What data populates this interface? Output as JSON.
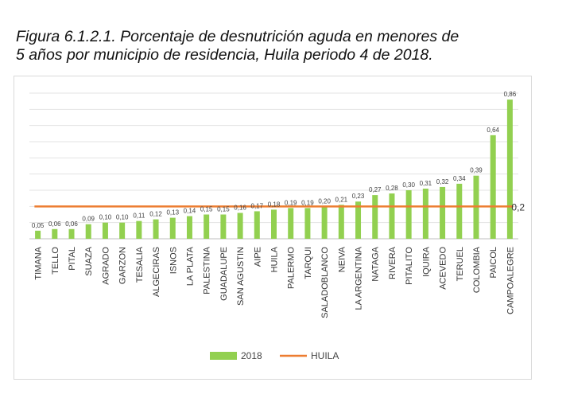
{
  "caption": {
    "line1": "Figura 6.1.2.1. Porcentaje de desnutrición aguda en menores de",
    "line2": "5 años por municipio de residencia, Huila periodo 4 de 2018."
  },
  "chart_data": {
    "type": "bar",
    "categories": [
      "TIMANA",
      "TELLO",
      "PITAL",
      "SUAZA",
      "AGRADO",
      "GARZON",
      "TESALIA",
      "ALGECIRAS",
      "ISNOS",
      "LA PLATA",
      "PALESTINA",
      "GUADALUPE",
      "SAN AGUSTIN",
      "AIPE",
      "HUILA",
      "PALERMO",
      "TARQUI",
      "SALADOBLANCO",
      "NEIVA",
      "LA ARGENTINA",
      "NATAGA",
      "RIVERA",
      "PITALITO",
      "IQUIRA",
      "ACEVEDO",
      "TERUEL",
      "COLOMBIA",
      "PAICOL",
      "CAMPOALEGRE"
    ],
    "series": [
      {
        "name": "2018",
        "color": "#92d050",
        "values": [
          0.05,
          0.06,
          0.06,
          0.09,
          0.1,
          0.1,
          0.11,
          0.12,
          0.13,
          0.14,
          0.15,
          0.15,
          0.16,
          0.17,
          0.18,
          0.19,
          0.19,
          0.2,
          0.21,
          0.23,
          0.27,
          0.28,
          0.3,
          0.31,
          0.32,
          0.34,
          0.39,
          0.64,
          0.86
        ],
        "labels": [
          "0,05",
          "0,06",
          "0,06",
          "0,09",
          "0,10",
          "0,10",
          "0,11",
          "0,12",
          "0,13",
          "0,14",
          "0,15",
          "0,15",
          "0,16",
          "0,17",
          "0,18",
          "0,19",
          "0,19",
          "0,20",
          "0,21",
          "0,23",
          "0,27",
          "0,28",
          "0,30",
          "0,31",
          "0,32",
          "0,34",
          "0,39",
          "0,64",
          "0,86"
        ]
      }
    ],
    "reference_line": {
      "name": "HUILA",
      "value": 0.2,
      "label": "0,2",
      "color": "#ed7d31"
    },
    "ylim": [
      0,
      0.9
    ],
    "grid": true,
    "legend": "bottom-center",
    "title": "",
    "xlabel": "",
    "ylabel": ""
  }
}
